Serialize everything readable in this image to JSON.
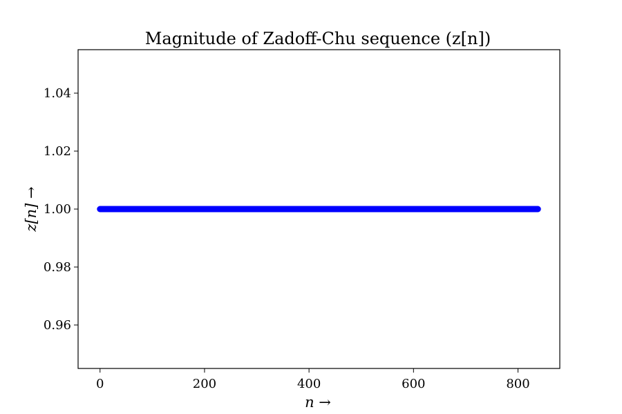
{
  "chart_data": {
    "type": "scatter",
    "title": "Magnitude of Zadoff-Chu sequence (z[n])",
    "xlabel": "n →",
    "ylabel": "z[n] →",
    "xlim": [
      -42,
      880
    ],
    "ylim": [
      0.945,
      1.055
    ],
    "xticks": [
      0,
      200,
      400,
      600,
      800
    ],
    "yticks": [
      0.96,
      0.98,
      1.0,
      1.02,
      1.04
    ],
    "xtick_labels": [
      "0",
      "200",
      "400",
      "600",
      "800"
    ],
    "ytick_labels": [
      "0.96",
      "0.98",
      "1.00",
      "1.02",
      "1.04"
    ],
    "grid": false,
    "series": [
      {
        "x_start": 0,
        "x_end": 838,
        "x_step": 1,
        "y_constant": 1.0,
        "color": "#0000ff"
      }
    ]
  }
}
